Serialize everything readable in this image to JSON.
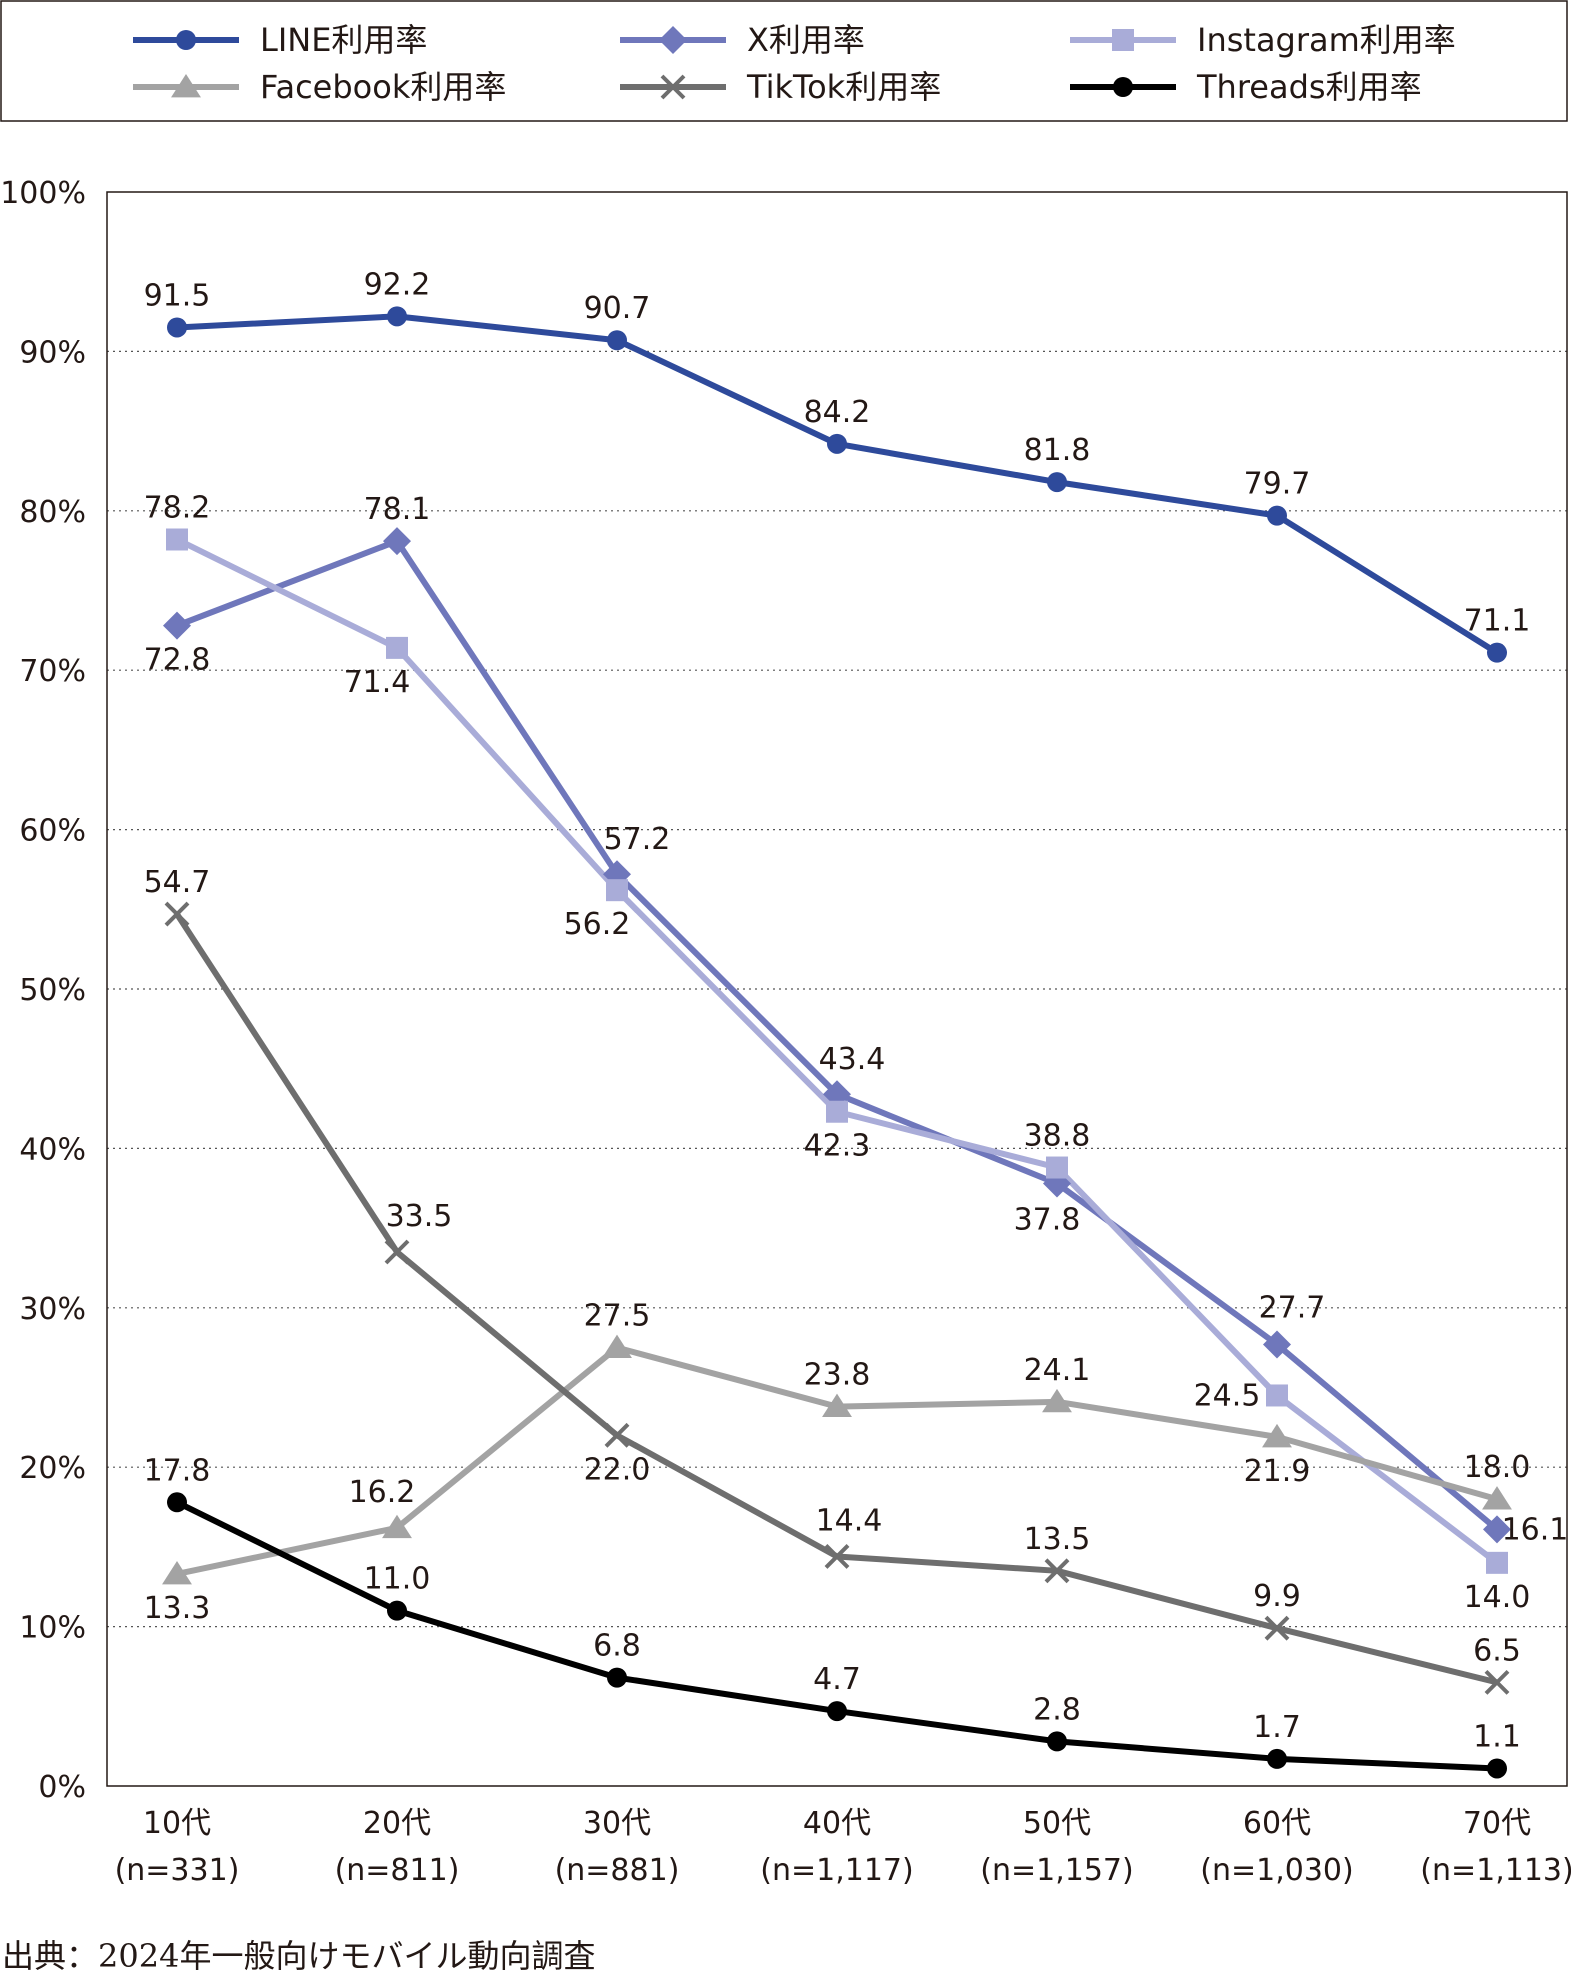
{
  "chart_data": {
    "type": "line",
    "categories": [
      {
        "label": "10代",
        "n": "(n=331)"
      },
      {
        "label": "20代",
        "n": "(n=811)"
      },
      {
        "label": "30代",
        "n": "(n=881)"
      },
      {
        "label": "40代",
        "n": "(n=1,117)"
      },
      {
        "label": "50代",
        "n": "(n=1,157)"
      },
      {
        "label": "60代",
        "n": "(n=1,030)"
      },
      {
        "label": "70代",
        "n": "(n=1,113)"
      }
    ],
    "yticks": [
      "0%",
      "10%",
      "20%",
      "30%",
      "40%",
      "50%",
      "60%",
      "70%",
      "80%",
      "90%",
      "100%"
    ],
    "ylim": [
      0,
      100
    ],
    "grid": "horizontal dotted",
    "legend_position": "top",
    "series": [
      {
        "name": "LINE利用率",
        "color": "#2e4a9b",
        "marker": "circle",
        "values": [
          91.5,
          92.2,
          90.7,
          84.2,
          81.8,
          79.7,
          71.1
        ],
        "labels": [
          "91.5",
          "92.2",
          "90.7",
          "84.2",
          "81.8",
          "79.7",
          "71.1"
        ]
      },
      {
        "name": "X利用率",
        "color": "#6f77bb",
        "marker": "diamond",
        "values": [
          72.8,
          78.1,
          57.2,
          43.4,
          37.8,
          27.7,
          16.1
        ],
        "labels": [
          "72.8",
          "78.1",
          "57.2",
          "43.4",
          "37.8",
          "27.7",
          "16.1"
        ]
      },
      {
        "name": "Instagram利用率",
        "color": "#a9acd8",
        "marker": "square",
        "values": [
          78.2,
          71.4,
          56.2,
          42.3,
          38.8,
          24.5,
          14.0
        ],
        "labels": [
          "78.2",
          "71.4",
          "56.2",
          "42.3",
          "38.8",
          "24.5",
          "14.0"
        ]
      },
      {
        "name": "Facebook利用率",
        "color": "#a3a3a3",
        "marker": "triangle",
        "values": [
          13.3,
          16.2,
          27.5,
          23.8,
          24.1,
          21.9,
          18.0
        ],
        "labels": [
          "13.3",
          "16.2",
          "27.5",
          "23.8",
          "24.1",
          "21.9",
          "18.0"
        ]
      },
      {
        "name": "TikTok利用率",
        "color": "#6e6e6e",
        "marker": "x",
        "values": [
          54.7,
          33.5,
          22.0,
          14.4,
          13.5,
          9.9,
          6.5
        ],
        "labels": [
          "54.7",
          "33.5",
          "22.0",
          "14.4",
          "13.5",
          "9.9",
          "6.5"
        ]
      },
      {
        "name": "Threads利用率",
        "color": "#000000",
        "marker": "circle",
        "values": [
          17.8,
          11.0,
          6.8,
          4.7,
          2.8,
          1.7,
          1.1
        ],
        "labels": [
          "17.8",
          "11.0",
          "6.8",
          "4.7",
          "2.8",
          "1.7",
          "1.1"
        ]
      }
    ]
  },
  "source": "出典：2024年一般向けモバイル動向調査"
}
